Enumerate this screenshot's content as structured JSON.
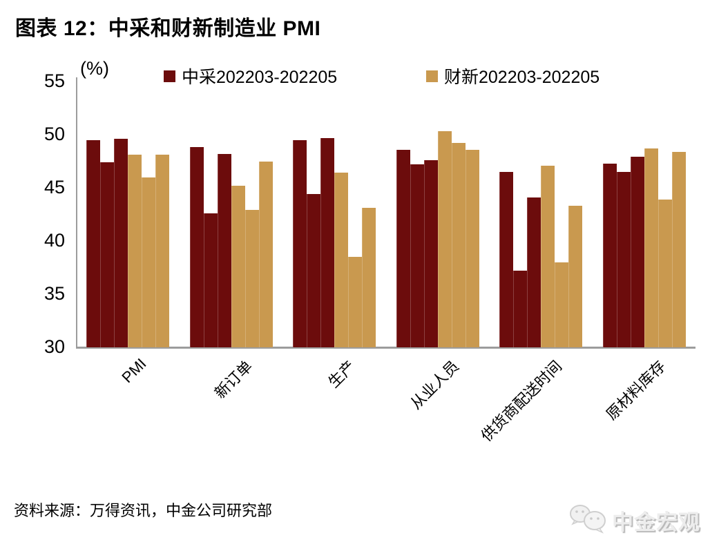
{
  "title": "图表 12：中采和财新制造业 PMI",
  "chart_data": {
    "type": "bar",
    "title": "图表 12：中采和财新制造业 PMI",
    "unit_label": "(%)",
    "categories": [
      "PMI",
      "新订单",
      "生产",
      "从业人员",
      "供货商配送时间",
      "原材料库存"
    ],
    "months": [
      "202203",
      "202204",
      "202205"
    ],
    "series": [
      {
        "name": "中采202203-202205",
        "color": "#6C0C0C",
        "values": [
          [
            49.5,
            47.4,
            49.6
          ],
          [
            48.8,
            42.6,
            48.2
          ],
          [
            49.5,
            44.4,
            49.7
          ],
          [
            48.6,
            47.2,
            47.6
          ],
          [
            46.5,
            37.2,
            44.1
          ],
          [
            47.3,
            46.5,
            47.9
          ]
        ]
      },
      {
        "name": "财新202203-202205",
        "color": "#C9994F",
        "values": [
          [
            48.1,
            46.0,
            48.1
          ],
          [
            45.2,
            42.9,
            47.5
          ],
          [
            46.4,
            38.5,
            43.1
          ],
          [
            50.3,
            49.2,
            48.6
          ],
          [
            47.1,
            38.0,
            43.3
          ],
          [
            48.7,
            43.9,
            48.4
          ]
        ]
      }
    ],
    "ylim": [
      30,
      55
    ],
    "yticks": [
      55,
      50,
      45,
      40,
      35,
      30
    ],
    "grid": false,
    "legend_position": "top"
  },
  "footer": {
    "source": "资料来源：万得资讯，中金公司研究部"
  },
  "watermark": {
    "label": "中金宏观"
  }
}
